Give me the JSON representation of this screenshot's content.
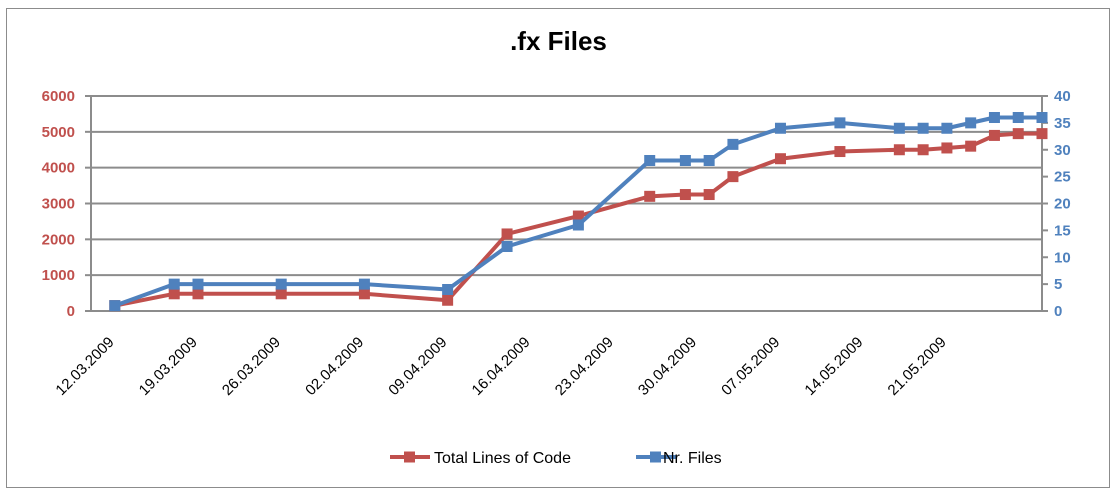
{
  "chart_data": {
    "type": "line",
    "title": ".fx Files",
    "x": [
      "12.03.2009",
      "17.03.2009",
      "19.03.2009",
      "26.03.2009",
      "02.04.2009",
      "09.04.2009",
      "14.04.2009",
      "20.04.2009",
      "26.04.2009",
      "29.04.2009",
      "01.05.2009",
      "03.05.2009",
      "07.05.2009",
      "12.05.2009",
      "17.05.2009",
      "19.05.2009",
      "21.05.2009",
      "23.05.2009",
      "25.05.2009",
      "27.05.2009",
      "29.05.2009"
    ],
    "x_tick_labels": [
      "12.03.2009",
      "19.03.2009",
      "26.03.2009",
      "02.04.2009",
      "09.04.2009",
      "16.04.2009",
      "23.04.2009",
      "30.04.2009",
      "07.05.2009",
      "14.05.2009",
      "21.05.2009"
    ],
    "series": [
      {
        "name": "Total Lines of Code",
        "axis": "left",
        "color": "#c0504d",
        "values": [
          150,
          480,
          480,
          480,
          480,
          300,
          2150,
          2650,
          3200,
          3250,
          3250,
          3750,
          4250,
          4450,
          4500,
          4500,
          4550,
          4600,
          4900,
          4950,
          4950
        ]
      },
      {
        "name": "Nr. Files",
        "axis": "right",
        "color": "#4f81bd",
        "values": [
          1,
          5,
          5,
          5,
          5,
          4,
          12,
          16,
          28,
          28,
          28,
          31,
          34,
          35,
          34,
          34,
          34,
          35,
          36,
          36,
          36
        ]
      }
    ],
    "y_left": {
      "ylim": [
        0,
        6000
      ],
      "ticks": [
        "0",
        "1000",
        "2000",
        "3000",
        "4000",
        "5000",
        "6000"
      ],
      "color": "#c0504d"
    },
    "y_right": {
      "ylim": [
        0,
        40
      ],
      "ticks": [
        "0",
        "5",
        "10",
        "15",
        "20",
        "25",
        "30",
        "35",
        "40"
      ],
      "color": "#4f81bd"
    },
    "grid": true,
    "legend_position": "bottom"
  }
}
